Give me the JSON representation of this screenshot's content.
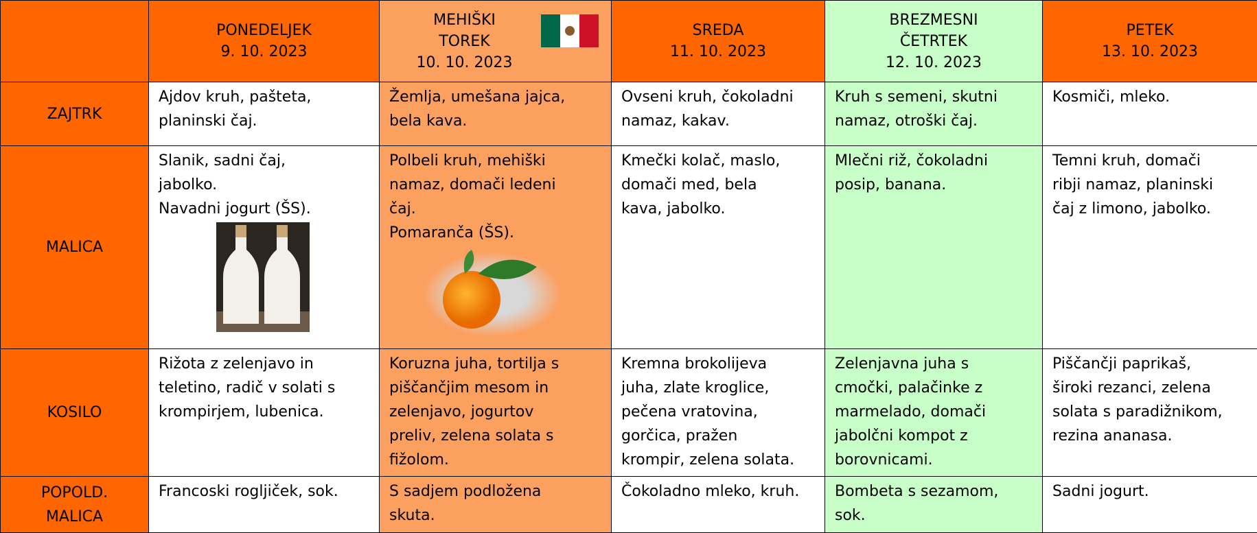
{
  "header": {
    "days": [
      [
        "PONEDELJEK",
        "9. 10. 2023"
      ],
      [
        "MEHIŠKI",
        "TOREK",
        "10. 10. 2023"
      ],
      [
        "SREDA",
        "11. 10. 2023"
      ],
      [
        "BREZMESNI",
        "ČETRTEK",
        "12. 10. 2023"
      ],
      [
        "PETEK",
        "13. 10. 2023"
      ]
    ]
  },
  "rows": [
    {
      "meal": [
        "ZAJTRK"
      ],
      "cells": [
        [
          "Ajdov kruh, pašteta,",
          "planinski čaj."
        ],
        [
          "Žemlja, umešana jajca,",
          "bela kava."
        ],
        [
          "Ovseni kruh, čokoladni",
          "namaz, kakav."
        ],
        [
          "Kruh s semeni, skutni",
          "namaz, otroški čaj."
        ],
        [
          "Kosmiči, mleko."
        ]
      ]
    },
    {
      "meal": [
        "MALICA"
      ],
      "cells": [
        [
          "Slanik, sadni čaj,",
          "jabolko.",
          "Navadni jogurt (ŠS)."
        ],
        [
          "Polbeli kruh, mehiški",
          "namaz, domači ledeni",
          "čaj.",
          "Pomaranča (ŠS)."
        ],
        [
          "Kmečki kolač, maslo,",
          "domači med, bela",
          "kava, jabolko."
        ],
        [
          "Mlečni riž, čokoladni",
          "posip, banana."
        ],
        [
          "Temni kruh, domači",
          "ribji namaz, planinski",
          "čaj z limono, jabolko."
        ]
      ]
    },
    {
      "meal": [
        "KOSILO"
      ],
      "cells": [
        [
          "Rižota z zelenjavo in",
          "teletino, radič v solati s",
          "krompirjem, lubenica."
        ],
        [
          "Koruzna juha, tortilja s",
          "piščančjim mesom in",
          "zelenjavo, jogurtov",
          "preliv, zelena solata s",
          "fižolom."
        ],
        [
          "Kremna brokolijeva",
          "juha, zlate kroglice,",
          "pečena vratovina,",
          "gorčica, pražen",
          "krompir, zelena solata."
        ],
        [
          "Zelenjavna juha s",
          "cmočki, palačinke z",
          "marmelado, domači",
          "jabolčni kompot z",
          "borovnicami."
        ],
        [
          "Piščančji paprikaš,",
          "široki rezanci, zelena",
          "solata s paradižnikom,",
          "rezina ananasa."
        ]
      ]
    },
    {
      "meal": [
        "POPOLD.",
        "MALICA"
      ],
      "cells": [
        [
          "Francoski rogljiček, sok."
        ],
        [
          "S sadjem podložena",
          "skuta."
        ],
        [
          "Čokoladno mleko, kruh."
        ],
        [
          "Bombeta s sezamom,",
          "sok."
        ],
        [
          "Sadni jogurt."
        ]
      ]
    }
  ]
}
